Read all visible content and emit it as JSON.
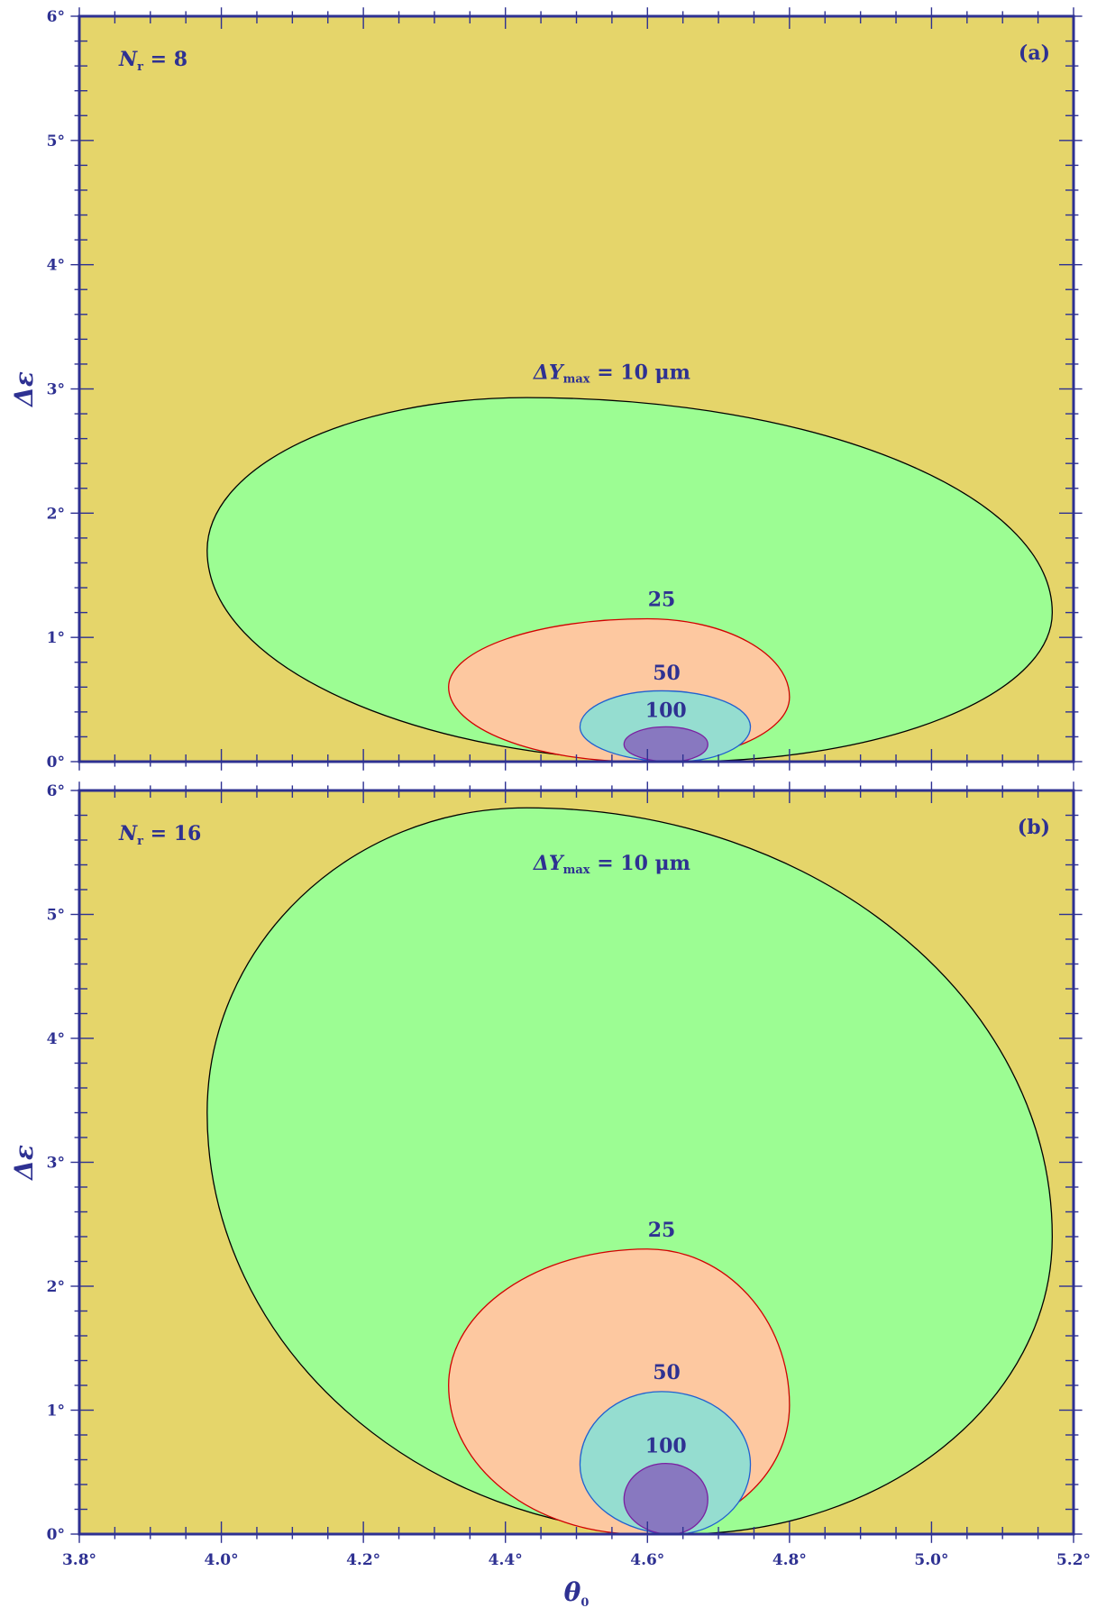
{
  "chart_data": [
    {
      "type": "contour",
      "panel_label": "(a)",
      "annotation": {
        "symbol": "N",
        "subscript": "r",
        "value": "= 8"
      },
      "xlim": [
        3.8,
        5.2
      ],
      "ylim": [
        0,
        6
      ],
      "x_ticks": [
        "3.8°",
        "4.0°",
        "4.2°",
        "4.4°",
        "4.6°",
        "4.8°",
        "5.0°",
        "5.2°"
      ],
      "y_ticks": [
        "0°",
        "1°",
        "2°",
        "3°",
        "4°",
        "5°",
        "6°"
      ],
      "ylabel": "Δε",
      "background_color": "#e5d56a",
      "contours": [
        {
          "level": 10,
          "label": "ΔY",
          "label_sub": "max",
          "label_tail": "= 10 μm",
          "fill": "#9cfd93",
          "stroke": "#000000",
          "x_range": [
            3.98,
            5.17
          ],
          "y_range": [
            0,
            2.93
          ],
          "top_x": 4.43,
          "left_y": 1.7,
          "right_y": 1.2,
          "label_x": 4.55,
          "label_y": 3.08
        },
        {
          "level": 25,
          "label": "25",
          "fill": "#fdc8a0",
          "stroke": "#d10000",
          "x_range": [
            4.32,
            4.8
          ],
          "y_range": [
            0,
            1.15
          ],
          "top_x": 4.6,
          "left_y": 0.6,
          "right_y": 0.52,
          "label_x": 4.62,
          "label_y": 1.25
        },
        {
          "level": 50,
          "label": "50",
          "fill": "#95ddd0",
          "stroke": "#2060d0",
          "x_range": [
            4.505,
            4.745
          ],
          "y_range": [
            0,
            0.57
          ],
          "top_x": 4.62,
          "left_y": 0.28,
          "right_y": 0.28,
          "label_x": 4.627,
          "label_y": 0.66
        },
        {
          "level": 100,
          "label": "100",
          "fill": "#8878c0",
          "stroke": "#7a1fa0",
          "x_range": [
            4.567,
            4.685
          ],
          "y_range": [
            0,
            0.28
          ],
          "top_x": 4.626,
          "left_y": 0.14,
          "right_y": 0.14,
          "label_x": 4.626,
          "label_y": 0.36
        }
      ]
    },
    {
      "type": "contour",
      "panel_label": "(b)",
      "annotation": {
        "symbol": "N",
        "subscript": "r",
        "value": "= 16"
      },
      "xlim": [
        3.8,
        5.2
      ],
      "ylim": [
        0,
        6
      ],
      "x_ticks": [
        "3.8°",
        "4.0°",
        "4.2°",
        "4.4°",
        "4.6°",
        "4.8°",
        "5.0°",
        "5.2°"
      ],
      "y_ticks": [
        "0°",
        "1°",
        "2°",
        "3°",
        "4°",
        "5°",
        "6°"
      ],
      "xlabel": "θ",
      "xlabel_sub": "0",
      "ylabel": "Δε",
      "background_color": "#e5d56a",
      "contours": [
        {
          "level": 10,
          "label": "ΔY",
          "label_sub": "max",
          "label_tail": "= 10 μm",
          "fill": "#9cfd93",
          "stroke": "#000000",
          "x_range": [
            3.98,
            5.17
          ],
          "y_range": [
            0,
            5.86
          ],
          "top_x": 4.43,
          "left_y": 3.4,
          "right_y": 2.4,
          "label_x": 4.55,
          "label_y": 5.36
        },
        {
          "level": 25,
          "label": "25",
          "fill": "#fdc8a0",
          "stroke": "#d10000",
          "x_range": [
            4.32,
            4.8
          ],
          "y_range": [
            0,
            2.3
          ],
          "top_x": 4.6,
          "left_y": 1.2,
          "right_y": 1.04,
          "label_x": 4.62,
          "label_y": 2.4
        },
        {
          "level": 50,
          "label": "50",
          "fill": "#95ddd0",
          "stroke": "#2060d0",
          "x_range": [
            4.505,
            4.745
          ],
          "y_range": [
            0,
            1.15
          ],
          "top_x": 4.62,
          "left_y": 0.56,
          "right_y": 0.56,
          "label_x": 4.627,
          "label_y": 1.25
        },
        {
          "level": 100,
          "label": "100",
          "fill": "#8878c0",
          "stroke": "#7a1fa0",
          "x_range": [
            4.567,
            4.685
          ],
          "y_range": [
            0,
            0.57
          ],
          "top_x": 4.626,
          "left_y": 0.28,
          "right_y": 0.28,
          "label_x": 4.626,
          "label_y": 0.66
        }
      ]
    }
  ],
  "colors": {
    "axis": "#2e3192",
    "tick": "#2e3192"
  }
}
